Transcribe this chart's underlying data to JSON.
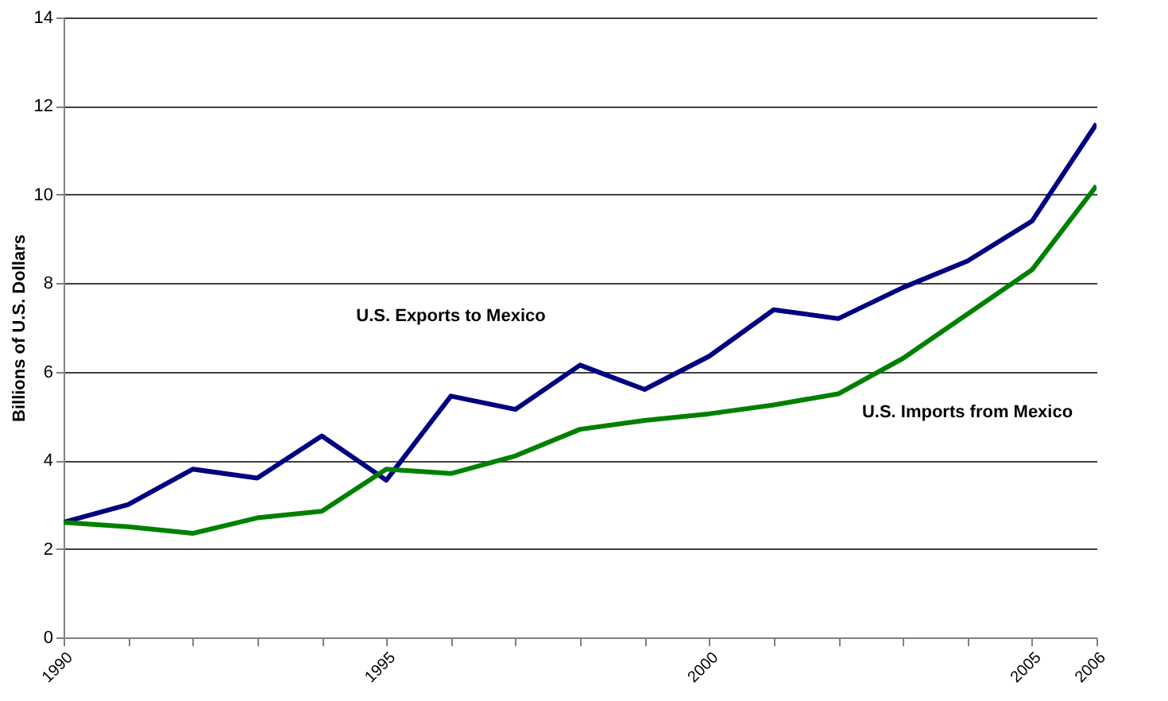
{
  "chart_data": {
    "type": "line",
    "ylabel": "Billions of U.S. Dollars",
    "x": [
      1990,
      1991,
      1992,
      1993,
      1994,
      1995,
      1996,
      1997,
      1998,
      1999,
      2000,
      2001,
      2002,
      2003,
      2004,
      2005,
      2006
    ],
    "series": [
      {
        "name": "U.S. Exports to Mexico",
        "color": "#000080",
        "values": [
          2.6,
          3.0,
          3.8,
          3.6,
          4.55,
          3.55,
          5.45,
          5.15,
          6.15,
          5.6,
          6.35,
          7.4,
          7.2,
          7.9,
          8.5,
          9.4,
          11.6
        ]
      },
      {
        "name": "U.S. Imports from Mexico",
        "color": "#008000",
        "values": [
          2.6,
          2.5,
          2.35,
          2.7,
          2.85,
          3.8,
          3.7,
          4.1,
          4.7,
          4.9,
          5.05,
          5.25,
          5.5,
          6.3,
          7.3,
          8.3,
          10.2
        ]
      }
    ],
    "xlim": [
      1990,
      2006
    ],
    "xticks": [
      1990,
      {
        "value": 1991,
        "label": null
      },
      {
        "value": 1992,
        "label": null
      },
      {
        "value": 1993,
        "label": null
      },
      {
        "value": 1994,
        "label": null
      },
      1995,
      {
        "value": 1996,
        "label": null
      },
      {
        "value": 1997,
        "label": null
      },
      {
        "value": 1998,
        "label": null
      },
      {
        "value": 1999,
        "label": null
      },
      2000,
      {
        "value": 2001,
        "label": null
      },
      {
        "value": 2002,
        "label": null
      },
      {
        "value": 2003,
        "label": null
      },
      {
        "value": 2004,
        "label": null
      },
      2005,
      2006
    ],
    "ylim": [
      0,
      14
    ],
    "yticks": [
      0,
      2,
      4,
      6,
      8,
      10,
      12,
      14
    ],
    "grid": "y",
    "legend": false,
    "marker": "none",
    "line_style": "solid"
  }
}
